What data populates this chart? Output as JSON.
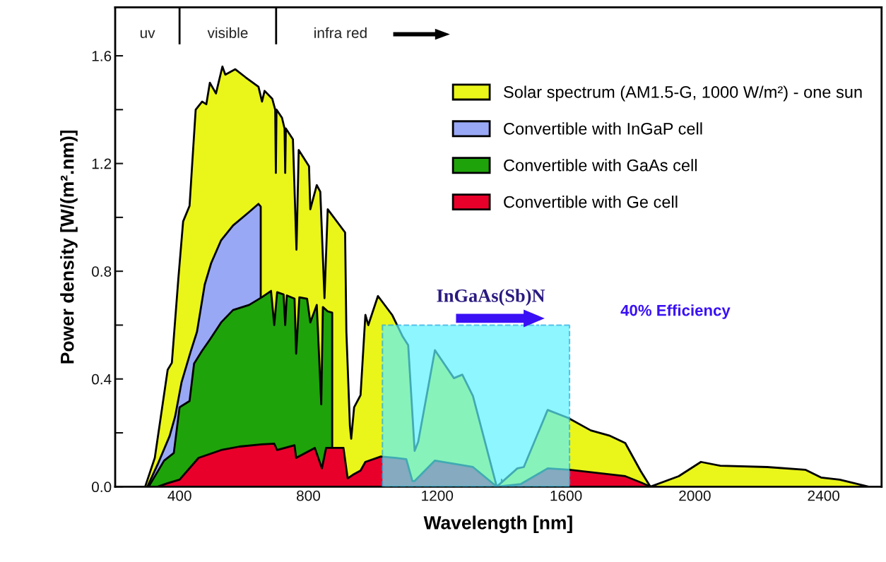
{
  "chart_data": {
    "type": "area",
    "xlabel": "Wavelength [nm]",
    "ylabel": "Power density [W/(m².nm)]",
    "xlim": [
      200,
      2580
    ],
    "ylim": [
      0,
      1.78
    ],
    "xticks": [
      400,
      {
        "value": 600,
        "label": null
      },
      800,
      {
        "value": 1000,
        "label": null
      },
      1200,
      {
        "value": 1400,
        "label": null
      },
      1600,
      {
        "value": 1800,
        "label": null
      },
      2000,
      {
        "value": 2200,
        "label": null
      },
      2400
    ],
    "yticks": [
      {
        "value": 0,
        "label": "0.0"
      },
      {
        "value": 0.2,
        "label": null
      },
      0.4,
      {
        "value": 0.6,
        "label": null
      },
      0.8,
      {
        "value": 1.0,
        "label": null
      },
      1.2,
      {
        "value": 1.4,
        "label": null
      },
      1.6
    ],
    "grid": false,
    "legend": "top right",
    "series": [
      {
        "name": "Solar spectrum (AM1.5-G, 1000 W/m²) - one sun",
        "color": "#eaf51a",
        "x": [
          293,
          323,
          363,
          376,
          396,
          411,
          431,
          439,
          450,
          470,
          483,
          494,
          513,
          533,
          542,
          573,
          605,
          645,
          656,
          664,
          688,
          697,
          699,
          701,
          718,
          726,
          728,
          730,
          752,
          763,
          770,
          802,
          806,
          826,
          837,
          850,
          860,
          914,
          918,
          929,
          933,
          942,
          962,
          977,
          986,
          1016,
          1060,
          1093,
          1110,
          1130,
          1141,
          1193,
          1252,
          1278,
          1311,
          1385,
          1449,
          1469,
          1543,
          1606,
          1677,
          1734,
          1784,
          1832,
          1862,
          1950,
          2019,
          2079,
          2225,
          2343,
          2392,
          2450,
          2540
        ],
        "values": [
          0,
          0.107,
          0.434,
          0.46,
          0.77,
          0.985,
          1.043,
          1.195,
          1.4,
          1.43,
          1.42,
          1.5,
          1.46,
          1.56,
          1.53,
          1.55,
          1.52,
          1.485,
          1.43,
          1.47,
          1.44,
          1.4,
          1.165,
          1.4,
          1.37,
          1.33,
          1.165,
          1.33,
          1.29,
          0.88,
          1.25,
          1.19,
          1.03,
          1.12,
          1.095,
          0.7,
          1.03,
          0.944,
          0.575,
          0.225,
          0.178,
          0.295,
          0.34,
          0.638,
          0.6,
          0.708,
          0.638,
          0.557,
          0.525,
          0.133,
          0.167,
          0.507,
          0.403,
          0.416,
          0.337,
          0,
          0.068,
          0.073,
          0.285,
          0.256,
          0.209,
          0.19,
          0.162,
          0.058,
          0,
          0.039,
          0.092,
          0.078,
          0.073,
          0.063,
          0.034,
          0.026,
          0
        ]
      },
      {
        "name": "Convertible with InGaP cell",
        "color": "#99a8f5",
        "x": [
          300,
          332,
          369,
          386,
          406,
          434,
          454,
          478,
          498,
          529,
          566,
          616,
          645,
          652
        ],
        "values": [
          0,
          0.083,
          0.188,
          0.26,
          0.387,
          0.5,
          0.575,
          0.75,
          0.83,
          0.915,
          0.97,
          1.02,
          1.05,
          1.04
        ]
      },
      {
        "name": "Convertible with GaAs cell",
        "color": "#1fa30a",
        "x": [
          304,
          352,
          382,
          400,
          431,
          445,
          470,
          494,
          529,
          566,
          616,
          655,
          684,
          694,
          703,
          723,
          728,
          733,
          757,
          762,
          772,
          796,
          806,
          826,
          840,
          845,
          860,
          874
        ],
        "values": [
          0,
          0.097,
          0.125,
          0.295,
          0.318,
          0.457,
          0.505,
          0.546,
          0.61,
          0.656,
          0.675,
          0.703,
          0.727,
          0.6,
          0.722,
          0.714,
          0.6,
          0.71,
          0.698,
          0.494,
          0.703,
          0.698,
          0.61,
          0.675,
          0.306,
          0.667,
          0.651,
          0.646
        ]
      },
      {
        "name": "Convertible with Ge cell",
        "color": "#e8002a",
        "x": [
          332,
          363,
          400,
          459,
          529,
          586,
          655,
          694,
          703,
          757,
          762,
          820,
          842,
          855,
          909,
          922,
          938,
          962,
          977,
          1025,
          1073,
          1104,
          1123,
          1130,
          1193,
          1311,
          1385,
          1460,
          1543,
          1611,
          1784,
          1832,
          1862
        ],
        "values": [
          0,
          0.013,
          0.026,
          0.107,
          0.136,
          0.149,
          0.157,
          0.16,
          0.136,
          0.154,
          0.107,
          0.144,
          0.068,
          0.144,
          0.144,
          0.031,
          0.044,
          0.06,
          0.092,
          0.112,
          0.107,
          0.102,
          0.021,
          0.021,
          0.097,
          0.073,
          0,
          0.01,
          0.068,
          0.063,
          0.039,
          0.016,
          0
        ]
      },
      {
        "color": "#5cf2ff",
        "line_style": "dashed",
        "x": [
          1030,
          1611
        ],
        "values": [
          0.6,
          0.6
        ]
      }
    ],
    "annotations": [
      "uv",
      "visible",
      "infra red",
      "InGaAs(Sb)N",
      "40% Efficiency"
    ]
  }
}
